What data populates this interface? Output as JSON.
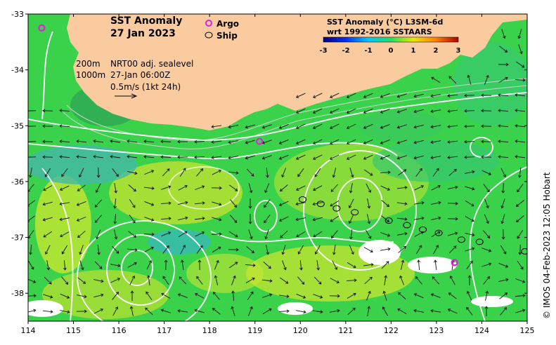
{
  "title": {
    "line1": "SST Anomaly",
    "line2": "27 Jan 2023"
  },
  "legend": {
    "argo_label": "Argo",
    "ship_label": "Ship",
    "argo_color": "#e020e0",
    "ship_color": "#000000"
  },
  "info": {
    "depth1": "200m",
    "depth2": "1000m",
    "product": "NRT00 adj. sealevel",
    "time": "27-Jan 06:00Z",
    "scale": "0.5m/s (1kt 24h)"
  },
  "colorbar": {
    "title1": "SST Anomaly (°C) L3SM-6d",
    "title2": "wrt 1992-2016 SSTAARS",
    "ticks": [
      "-3",
      "-2",
      "-1",
      "0",
      "1",
      "2",
      "3"
    ],
    "colors": [
      "#00007f",
      "#0030ff",
      "#00c8ff",
      "#20e060",
      "#e8e800",
      "#ff8000",
      "#b00000"
    ]
  },
  "credit": "© IMOS 04-Feb-2023 12:05 Hobart",
  "axes": {
    "x_ticks": [
      "114",
      "115",
      "116",
      "117",
      "118",
      "119",
      "120",
      "121",
      "122",
      "123",
      "124",
      "125"
    ],
    "y_ticks": [
      "-33",
      "-34",
      "-35",
      "-36",
      "-37",
      "-38"
    ],
    "x_range": [
      114,
      125
    ],
    "y_range": [
      -38.5,
      -33
    ]
  },
  "colors": {
    "land": "#fbcba0",
    "sea": "#3ad24a",
    "warm": "#c8e830",
    "cool": "#40c890",
    "contour": "#ffffff"
  },
  "argo_floats": [
    {
      "lon": 114.3,
      "lat": -33.25
    },
    {
      "lon": 119.1,
      "lat": -35.28
    },
    {
      "lon": 123.4,
      "lat": -37.45
    }
  ],
  "ship_track": [
    {
      "lon": 120.05,
      "lat": -36.32
    },
    {
      "lon": 120.45,
      "lat": -36.4
    },
    {
      "lon": 120.8,
      "lat": -36.48
    },
    {
      "lon": 121.2,
      "lat": -36.55
    },
    {
      "lon": 121.95,
      "lat": -36.7
    },
    {
      "lon": 122.35,
      "lat": -36.78
    },
    {
      "lon": 122.7,
      "lat": -36.86
    },
    {
      "lon": 123.05,
      "lat": -36.92
    },
    {
      "lon": 123.55,
      "lat": -37.04
    },
    {
      "lon": 123.95,
      "lat": -37.08
    },
    {
      "lon": 124.95,
      "lat": -37.25
    }
  ]
}
